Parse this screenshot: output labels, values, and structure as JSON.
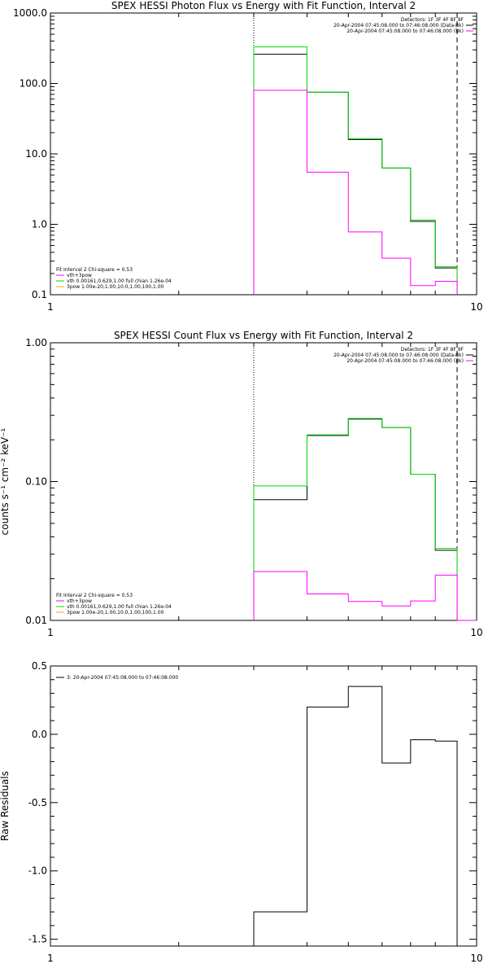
{
  "chart_data": [
    {
      "type": "line",
      "title": "SPEX HESSI Photon Flux vs Energy with Fit Function, Interval 2",
      "xlabel": "",
      "ylabel": "",
      "xscale": "log",
      "yscale": "log",
      "xlim": [
        1,
        10
      ],
      "ylim": [
        0.1,
        1000
      ],
      "xticks": [
        "1",
        "10"
      ],
      "yticks": [
        {
          "v": 0.1,
          "label": "0.1"
        },
        {
          "v": 1,
          "label": "1.0"
        },
        {
          "v": 10,
          "label": "10.0"
        },
        {
          "v": 100,
          "label": "100.0"
        },
        {
          "v": 1000,
          "label": "1000.0"
        }
      ],
      "header_lines": [
        "Detectors: 1F 3F 4F 8F 9F",
        "20-Apr-2004 07:45:08.000 to 07:46:08.000 (Data-Bk)",
        "20-Apr-2004 07:45:08.000 to 07:46:08.000 (Bk)"
      ],
      "header_colors": [
        "#000000",
        "#000000",
        "#ff00ff"
      ],
      "legend_lines": [
        "Fit Interval 2   Chi-square = 0.53",
        "vth+3pow",
        "vth 0.00161,0.629,1.00  full chian 1.26e-04",
        "3pow 1.00e-20,1.00,10.0,1.00,100,1.00"
      ],
      "legend_colors": [
        "",
        "#ff00ff",
        "#00dd00",
        "#ffa500"
      ],
      "vlines": [
        {
          "x": 3.0,
          "style": "dotted"
        },
        {
          "x": 9.0,
          "style": "dashed"
        }
      ],
      "series": [
        {
          "color": "#000000",
          "edges": [
            3.0,
            4.0,
            5.0,
            6.0,
            7.0,
            8.0,
            9.0
          ],
          "values": [
            260,
            75,
            16,
            6.3,
            1.1,
            0.24
          ]
        },
        {
          "color": "#00dd00",
          "edges": [
            3.0,
            4.0,
            5.0,
            6.0,
            7.0,
            8.0,
            9.0
          ],
          "values": [
            330,
            75,
            16.5,
            6.3,
            1.15,
            0.25
          ]
        },
        {
          "color": "#ff00ff",
          "edges": [
            3.0,
            4.0,
            5.0,
            6.0,
            7.0,
            8.0,
            9.0
          ],
          "values": [
            80,
            5.5,
            0.78,
            0.33,
            0.135,
            0.155
          ]
        }
      ]
    },
    {
      "type": "line",
      "title": "SPEX HESSI Count Flux vs Energy with Fit Function, Interval 2",
      "xlabel": "",
      "ylabel": "counts s⁻¹ cm⁻² keV⁻¹",
      "xscale": "log",
      "yscale": "log",
      "xlim": [
        1,
        10
      ],
      "ylim": [
        0.01,
        1.0
      ],
      "xticks": [
        "1",
        "10"
      ],
      "yticks": [
        {
          "v": 0.01,
          "label": "0.01"
        },
        {
          "v": 0.1,
          "label": "0.10"
        },
        {
          "v": 1,
          "label": "1.00"
        }
      ],
      "header_lines": [
        "Detectors: 1F 3F 4F 8F 9F",
        "20-Apr-2004 07:45:08.000 to 07:46:08.000 (Data-Bk)",
        "20-Apr-2004 07:45:08.000 to 07:46:08.000 (Bk)"
      ],
      "header_colors": [
        "#000000",
        "#000000",
        "#ff00ff"
      ],
      "legend_lines": [
        "Fit Interval 2   Chi-square = 0.53",
        "vth+3pow",
        "vth 0.00161,0.629,1.00  full chian 1.26e-04",
        "3pow 1.00e-20,1.00,10.0,1.00,100,1.00"
      ],
      "legend_colors": [
        "",
        "#ff00ff",
        "#00dd00",
        "#ffa500"
      ],
      "vlines": [
        {
          "x": 3.0,
          "style": "dotted"
        },
        {
          "x": 9.0,
          "style": "dashed"
        }
      ],
      "series": [
        {
          "color": "#000000",
          "edges": [
            3.0,
            4.0,
            5.0,
            6.0,
            7.0,
            8.0,
            9.0
          ],
          "values": [
            0.074,
            0.215,
            0.282,
            0.245,
            0.113,
            0.032
          ]
        },
        {
          "color": "#00dd00",
          "edges": [
            3.0,
            4.0,
            5.0,
            6.0,
            7.0,
            8.0,
            9.0
          ],
          "values": [
            0.093,
            0.217,
            0.285,
            0.245,
            0.113,
            0.033
          ]
        },
        {
          "color": "#ff00ff",
          "edges": [
            3.0,
            4.0,
            5.0,
            6.0,
            7.0,
            8.0,
            9.0,
            10.0
          ],
          "values": [
            0.0225,
            0.0155,
            0.0137,
            0.0127,
            0.0138,
            0.0212,
            0.01
          ]
        }
      ]
    },
    {
      "type": "line",
      "title": "",
      "xlabel": "",
      "ylabel": "Raw Residuals",
      "xscale": "log",
      "yscale": "linear",
      "xlim": [
        1,
        10
      ],
      "ylim": [
        -1.55,
        0.5
      ],
      "xticks": [
        "1",
        "10"
      ],
      "yticks": [
        {
          "v": 0.5,
          "label": "0.5"
        },
        {
          "v": 0.0,
          "label": "0.0"
        },
        {
          "v": -0.5,
          "label": "-0.5"
        },
        {
          "v": -1.0,
          "label": "-1.0"
        },
        {
          "v": -1.5,
          "label": "-1.5"
        }
      ],
      "legend_lines": [
        "3: 20-Apr-2004 07:45:08.000 to 07:46:08.000"
      ],
      "legend_colors": [
        "#000000"
      ],
      "series": [
        {
          "color": "#000000",
          "edges": [
            3.0,
            4.0,
            5.0,
            6.0,
            7.0,
            8.0,
            9.0
          ],
          "values": [
            -1.3,
            0.2,
            0.35,
            -0.21,
            -0.04,
            -0.05
          ],
          "drop_to_bottom": true
        }
      ]
    }
  ]
}
